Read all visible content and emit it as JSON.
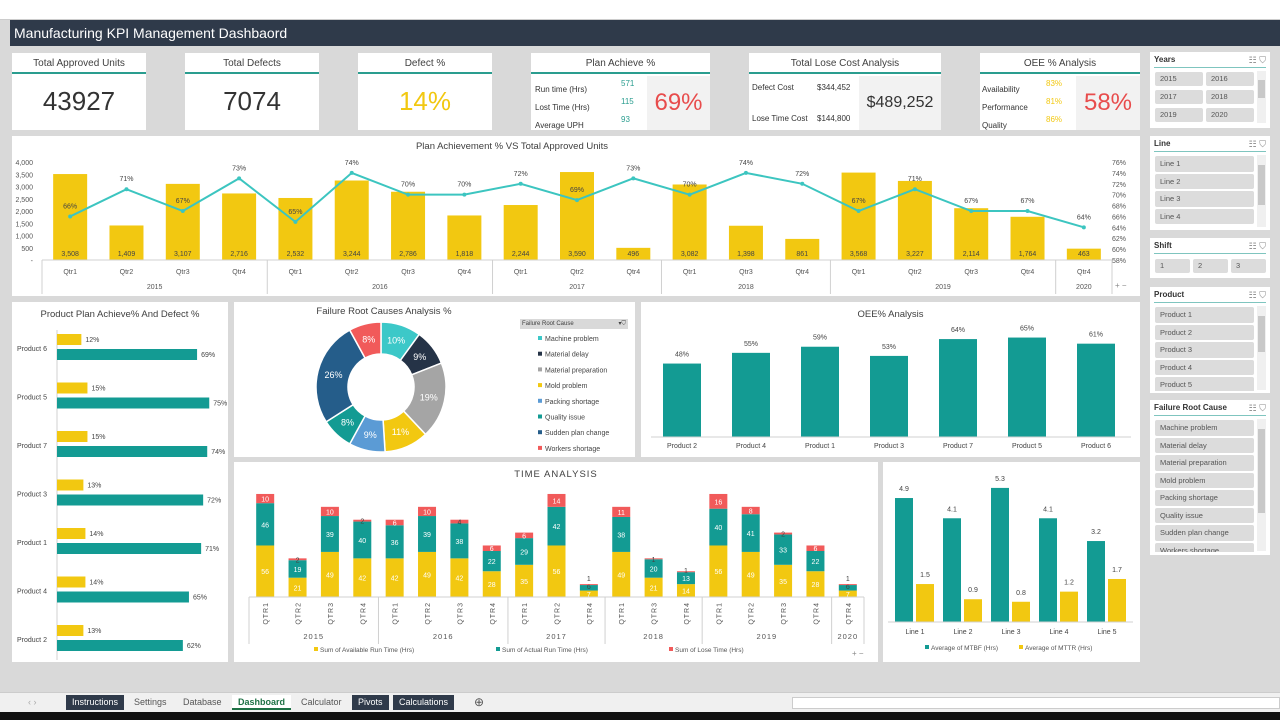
{
  "title": "Manufacturing KPI Management Dashbaord",
  "kpis": {
    "approved": {
      "label": "Total Approved Units",
      "value": "43927"
    },
    "defects": {
      "label": "Total Defects",
      "value": "7074"
    },
    "defect_pct": {
      "label": "Defect %",
      "value": "14%"
    },
    "plan": {
      "label": "Plan Achieve %",
      "value": "69%",
      "rows": [
        {
          "label": "Run time (Hrs)",
          "value": "571"
        },
        {
          "label": "Lost Time (Hrs)",
          "value": "115"
        },
        {
          "label": "Average UPH",
          "value": "93"
        }
      ]
    },
    "cost": {
      "label": "Total Lose Cost Analysis",
      "value": "$489,252",
      "rows": [
        {
          "label": "Defect Cost",
          "value": "$344,452"
        },
        {
          "label": "Lose Time Cost",
          "value": "$144,800"
        }
      ]
    },
    "oee": {
      "label": "OEE % Analysis",
      "value": "58%",
      "rows": [
        {
          "label": "Availability",
          "value": "83%"
        },
        {
          "label": "Performance",
          "value": "81%"
        },
        {
          "label": "Quality",
          "value": "86%"
        }
      ]
    }
  },
  "colors": {
    "yellow": "#f2c811",
    "teal": "#139b93",
    "line": "#3cc5c0",
    "red": "#f15a5a",
    "dark": "#2f3a4a"
  },
  "slicers": {
    "years": {
      "title": "Years",
      "items": [
        "2015",
        "2016",
        "2017",
        "2018",
        "2019",
        "2020"
      ]
    },
    "line": {
      "title": "Line",
      "items": [
        "Line 1",
        "Line 2",
        "Line 3",
        "Line 4"
      ]
    },
    "shift": {
      "title": "Shift",
      "items": [
        "1",
        "2",
        "3"
      ]
    },
    "product": {
      "title": "Product",
      "items": [
        "Product 1",
        "Product 2",
        "Product 3",
        "Product 4",
        "Product 5"
      ]
    },
    "failure": {
      "title": "Failure Root Cause",
      "items": [
        "Machine problem",
        "Material delay",
        "Material preparation",
        "Mold problem",
        "Packing shortage",
        "Quality issue",
        "Sudden plan change",
        "Workers shortage"
      ]
    }
  },
  "chart_data": [
    {
      "id": "plan",
      "type": "bar+line",
      "title": "Plan Achievement % VS Total Approved Units",
      "groups": [
        {
          "year": "2015",
          "quarters": [
            "Qtr1",
            "Qtr2",
            "Qtr3",
            "Qtr4"
          ]
        },
        {
          "year": "2016",
          "quarters": [
            "Qtr1",
            "Qtr2",
            "Qtr3",
            "Qtr4"
          ]
        },
        {
          "year": "2017",
          "quarters": [
            "Qtr1",
            "Qtr2",
            "Qtr4"
          ]
        },
        {
          "year": "2018",
          "quarters": [
            "Qtr1",
            "Qtr3",
            "Qtr4"
          ]
        },
        {
          "year": "2019",
          "quarters": [
            "Qtr1",
            "Qtr2",
            "Qtr3",
            "Qtr4"
          ]
        },
        {
          "year": "2020",
          "quarters": [
            "Qtr4"
          ]
        }
      ],
      "units": [
        3508,
        1409,
        3107,
        2716,
        2532,
        3244,
        2786,
        1818,
        2244,
        3590,
        496,
        3082,
        1398,
        861,
        3568,
        3227,
        2114,
        1764,
        463
      ],
      "units_labels": [
        "3,508",
        "1,409",
        "3,107",
        "2,716",
        "2,532",
        "3,244",
        "2,786",
        "1,818",
        "2,244",
        "3,590",
        "496",
        "3,082",
        "1,398",
        "861",
        "3,568",
        "3,227",
        "2,114",
        "1,764",
        "463"
      ],
      "plan_pct": [
        66,
        71,
        67,
        73,
        65,
        74,
        70,
        70,
        72,
        69,
        73,
        70,
        74,
        72,
        67,
        71,
        67,
        67,
        64
      ],
      "ylim": [
        0,
        4000
      ],
      "yticks": [
        "-",
        "500",
        "1,000",
        "1,500",
        "2,000",
        "2,500",
        "3,000",
        "3,500",
        "4,000"
      ],
      "y2lim": [
        58,
        76
      ],
      "y2ticks": [
        "58%",
        "60%",
        "62%",
        "64%",
        "66%",
        "68%",
        "70%",
        "72%",
        "74%",
        "76%"
      ]
    },
    {
      "id": "product",
      "type": "hbar",
      "title": "Product Plan Achieve% And  Defect %",
      "categories": [
        "Product 6",
        "Product 5",
        "Product 7",
        "Product 3",
        "Product 1",
        "Product 4",
        "Product 2"
      ],
      "defect_pct": [
        12,
        15,
        15,
        13,
        14,
        14,
        13
      ],
      "plan_pct": [
        69,
        75,
        74,
        72,
        71,
        65,
        62
      ]
    },
    {
      "id": "donut",
      "type": "pie",
      "title": "Failure Root Causes Analysis %",
      "legend_title": "Failure Root Cause",
      "slices": [
        {
          "name": "Machine problem",
          "value": 10,
          "color": "#3cc8c8"
        },
        {
          "name": "Material delay",
          "value": 9,
          "color": "#253347"
        },
        {
          "name": "Material preparation",
          "value": 19,
          "color": "#a5a5a5"
        },
        {
          "name": "Mold problem",
          "value": 11,
          "color": "#f2c811"
        },
        {
          "name": "Packing shortage",
          "value": 9,
          "color": "#5b9bd5"
        },
        {
          "name": "Quality issue",
          "value": 8,
          "color": "#139b93"
        },
        {
          "name": "Sudden plan change",
          "value": 26,
          "color": "#255d8a"
        },
        {
          "name": "Workers shortage",
          "value": 8,
          "color": "#f15a5a"
        }
      ]
    },
    {
      "id": "oee",
      "type": "bar",
      "title": "OEE% Analysis",
      "categories": [
        "Product 2",
        "Product 4",
        "Product 1",
        "Product 3",
        "Product 7",
        "Product 5",
        "Product 6"
      ],
      "values": [
        48,
        55,
        59,
        53,
        64,
        65,
        61
      ]
    },
    {
      "id": "time",
      "type": "stacked-bar",
      "title": "TIME ANALYSIS",
      "groups": [
        {
          "year": "2015",
          "quarters": [
            "QTR1",
            "QTR2",
            "QTR3",
            "QTR4"
          ]
        },
        {
          "year": "2016",
          "quarters": [
            "QTR1",
            "QTR2",
            "QTR3",
            "QTR4"
          ]
        },
        {
          "year": "2017",
          "quarters": [
            "QTR1",
            "QTR2",
            "QTR4"
          ]
        },
        {
          "year": "2018",
          "quarters": [
            "QTR1",
            "QTR3",
            "QTR4"
          ]
        },
        {
          "year": "2019",
          "quarters": [
            "QTR1",
            "QTR2",
            "QTR3",
            "QTR4"
          ]
        },
        {
          "year": "2020",
          "quarters": [
            "QTR4"
          ]
        }
      ],
      "series": [
        {
          "name": "Sum of Available Run Time (Hrs)",
          "color": "#f2c811",
          "values": [
            56,
            21,
            49,
            42,
            42,
            49,
            42,
            28,
            35,
            56,
            7,
            49,
            21,
            14,
            56,
            49,
            35,
            28,
            7
          ]
        },
        {
          "name": "Sum of Actual Run Time (Hrs)",
          "color": "#139b93",
          "values": [
            46,
            19,
            39,
            40,
            36,
            39,
            38,
            22,
            29,
            42,
            6,
            38,
            20,
            13,
            40,
            41,
            33,
            22,
            6
          ]
        },
        {
          "name": "Sum of Lose Time (Hrs)",
          "color": "#f15a5a",
          "values": [
            10,
            2,
            10,
            2,
            6,
            10,
            4,
            6,
            6,
            14,
            1,
            11,
            1,
            1,
            16,
            8,
            2,
            6,
            1
          ]
        }
      ]
    },
    {
      "id": "mtbf",
      "type": "bar",
      "categories": [
        "Line 1",
        "Line 2",
        "Line 3",
        "Line 4",
        "Line 5"
      ],
      "series": [
        {
          "name": "Average of MTBF (Hrs)",
          "color": "#139b93",
          "values": [
            4.9,
            4.1,
            5.3,
            4.1,
            3.2
          ]
        },
        {
          "name": "Average of MTTR (Hrs)",
          "color": "#f2c811",
          "values": [
            1.5,
            0.9,
            0.8,
            1.2,
            1.7
          ]
        }
      ]
    }
  ],
  "sheet_tabs": [
    {
      "label": "Instructions",
      "style": "dark"
    },
    {
      "label": "Settings",
      "style": ""
    },
    {
      "label": "Database",
      "style": ""
    },
    {
      "label": "Dashboard",
      "style": "active"
    },
    {
      "label": "Calculator",
      "style": ""
    },
    {
      "label": "Pivots",
      "style": "dark"
    },
    {
      "label": "Calculations",
      "style": "dark"
    }
  ]
}
